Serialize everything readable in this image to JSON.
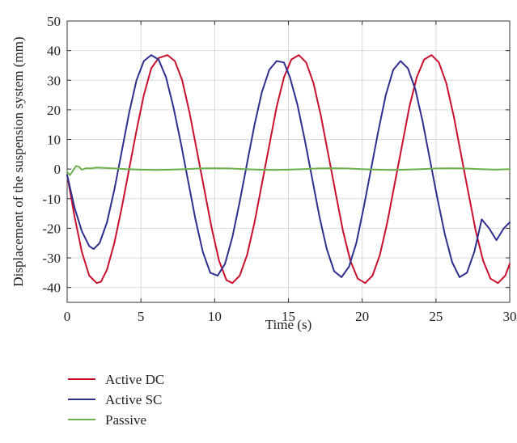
{
  "chart_data": {
    "type": "line",
    "title": "",
    "xlabel": "Time (s)",
    "ylabel": "Displacement of the suspension system (mm)",
    "xlim": [
      0,
      30
    ],
    "ylim": [
      -45,
      50
    ],
    "xticks": [
      0,
      5,
      10,
      15,
      20,
      25,
      30
    ],
    "yticks": [
      -40,
      -30,
      -20,
      -10,
      0,
      10,
      20,
      30,
      40,
      50
    ],
    "xtick_labels": [
      "0",
      "5",
      "10",
      "15",
      "20",
      "25",
      "30"
    ],
    "ytick_labels": [
      "-40",
      "-30",
      "-20",
      "-10",
      "0",
      "10",
      "20",
      "30",
      "40",
      "50"
    ],
    "grid": true,
    "legend_position": "below",
    "series": [
      {
        "name": "Active DC",
        "color": "#c8102e",
        "x": [
          0,
          0.5,
          1,
          1.5,
          2,
          2.3,
          2.7,
          3.2,
          3.7,
          4.2,
          4.7,
          5.2,
          5.7,
          6.2,
          6.8,
          7.3,
          7.8,
          8.3,
          8.8,
          9.3,
          9.8,
          10.3,
          10.8,
          11.2,
          11.7,
          12.2,
          12.7,
          13.2,
          13.7,
          14.2,
          14.7,
          15.2,
          15.7,
          16.2,
          16.7,
          17.2,
          17.7,
          18.2,
          18.7,
          19.2,
          19.7,
          20.2,
          20.7,
          21.2,
          21.7,
          22.2,
          22.7,
          23.2,
          23.7,
          24.2,
          24.7,
          25.2,
          25.7,
          26.2,
          26.7,
          27.2,
          27.7,
          28.2,
          28.7,
          29.2,
          29.7,
          30
        ],
        "y": [
          -2,
          -16,
          -28,
          -36,
          -38.5,
          -38,
          -34,
          -25,
          -13,
          0,
          13,
          25,
          34,
          37.5,
          38.5,
          36.5,
          30,
          19,
          6,
          -7,
          -20,
          -31,
          -37.5,
          -38.5,
          -36,
          -29,
          -18,
          -5,
          8,
          21,
          31,
          37,
          38.5,
          36,
          29,
          18,
          5,
          -8,
          -21,
          -31,
          -37,
          -38.5,
          -36,
          -29,
          -18,
          -5,
          8,
          21,
          31,
          37,
          38.5,
          36,
          29,
          18,
          5,
          -8,
          -21,
          -31,
          -37,
          -38.5,
          -36,
          -32
        ]
      },
      {
        "name": "Active SC",
        "color": "#2e2f8c",
        "x": [
          0,
          0.5,
          1,
          1.5,
          1.8,
          2.2,
          2.7,
          3.2,
          3.7,
          4.2,
          4.7,
          5.2,
          5.7,
          6.2,
          6.7,
          7.2,
          7.7,
          8.2,
          8.7,
          9.2,
          9.7,
          10.2,
          10.7,
          11.2,
          11.7,
          12.2,
          12.7,
          13.2,
          13.7,
          14.2,
          14.7,
          15.1,
          15.6,
          16.1,
          16.6,
          17.1,
          17.6,
          18.1,
          18.6,
          19.1,
          19.6,
          20.1,
          20.6,
          21.1,
          21.6,
          22.1,
          22.6,
          23.1,
          23.6,
          24.1,
          24.6,
          25.1,
          25.6,
          26.1,
          26.6,
          27.1,
          27.6,
          28.1,
          28.6,
          29.1,
          29.6,
          30
        ],
        "y": [
          -2,
          -13,
          -21,
          -26,
          -27,
          -25,
          -18,
          -7,
          6,
          19,
          30,
          36.5,
          38.5,
          37,
          31,
          21,
          9,
          -4,
          -17,
          -28,
          -35,
          -36,
          -32,
          -23,
          -11,
          2,
          15,
          26,
          33.5,
          36.5,
          36,
          31,
          22,
          10,
          -3,
          -16,
          -27,
          -34.5,
          -36.5,
          -33,
          -25,
          -13,
          0,
          13,
          25,
          33.5,
          36.5,
          34,
          27,
          16,
          3,
          -10,
          -22,
          -31.5,
          -36.5,
          -35,
          -28,
          -17,
          -20,
          -24,
          -20,
          -18
        ]
      },
      {
        "name": "Passive",
        "color": "#6ab04c",
        "x": [
          0,
          0.2,
          0.4,
          0.6,
          0.8,
          1.0,
          1.3,
          1.6,
          2.0,
          3,
          4,
          5,
          6,
          7,
          8,
          9,
          10,
          11,
          12,
          13,
          14,
          15,
          16,
          17,
          18,
          19,
          20,
          21,
          22,
          23,
          24,
          25,
          26,
          27,
          28,
          29,
          30
        ],
        "y": [
          -1,
          -2,
          -0.5,
          1,
          0.8,
          -0.2,
          0.3,
          0.2,
          0.5,
          0.3,
          0,
          -0.2,
          -0.3,
          -0.2,
          0,
          0.2,
          0.3,
          0.2,
          0,
          -0.2,
          -0.3,
          -0.2,
          0,
          0.2,
          0.3,
          0.2,
          0,
          -0.2,
          -0.3,
          -0.2,
          0,
          0.2,
          0.3,
          0.2,
          0,
          -0.2,
          0
        ]
      }
    ]
  }
}
